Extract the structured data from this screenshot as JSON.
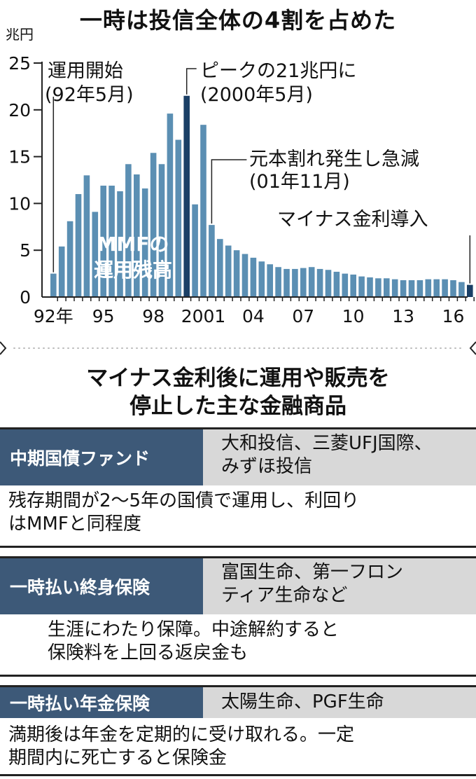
{
  "title": "一時は投信全体の4割を占めた",
  "chart_data": {
    "type": "bar",
    "unit_label": "兆円",
    "series_label": [
      "MMFの",
      "運用残高"
    ],
    "ylim": [
      0,
      25
    ],
    "yticks": [
      0,
      5,
      10,
      15,
      20,
      25
    ],
    "x_tick_labels": [
      "92年",
      "95",
      "98",
      "2001",
      "04",
      "07",
      "10",
      "13",
      "16"
    ],
    "values": [
      2.5,
      5.4,
      8.1,
      11,
      13,
      9.1,
      11.9,
      11.9,
      11.3,
      14.2,
      13.1,
      11.6,
      15.4,
      14.2,
      19.6,
      16.8,
      21.5,
      9.9,
      18.4,
      7.7,
      6.2,
      5.5,
      5.0,
      4.6,
      4.2,
      3.8,
      3.5,
      3.2,
      3.0,
      3.0,
      3.1,
      3.2,
      3.0,
      2.9,
      2.7,
      2.5,
      2.4,
      2.2,
      2.1,
      2.0,
      2.0,
      1.9,
      1.8,
      1.8,
      1.8,
      1.9,
      1.9,
      1.9,
      1.8,
      1.6,
      1.3
    ],
    "highlight_bars": [
      16,
      50
    ],
    "colors": {
      "bar": "#5b8fb3",
      "highlight": "#1a3f66",
      "text": "#111111"
    },
    "annotations": [
      {
        "text": [
          "運用開始",
          "(92年5月)"
        ]
      },
      {
        "text": [
          "ピークの21兆円に",
          "(2000年5月)"
        ]
      },
      {
        "text": [
          "元本割れ発生し急減",
          "(01年11月)"
        ]
      },
      {
        "text": [
          "マイナス金利導入"
        ]
      }
    ]
  },
  "section": {
    "title_lines": [
      "マイナス金利後に運用や販売を",
      "停止した主な金融商品"
    ]
  },
  "products": [
    {
      "name": "中期国債ファンド",
      "companies": [
        "大和投信、三菱UFJ国際、",
        "みずほ投信"
      ],
      "description": [
        "残存期間が2〜5年の国債で運用し、利回り",
        "はMMFと同程度"
      ]
    },
    {
      "name": "一時払い終身保険",
      "companies": [
        "富国生命、第一フロン",
        "ティア生命など"
      ],
      "description": [
        "生涯にわたり保障。中途解約すると",
        "保険料を上回る返戻金も"
      ]
    },
    {
      "name": "一時払い年金保険",
      "companies": [
        "太陽生命、PGF生命"
      ],
      "description": [
        "満期後は年金を定期的に受け取れる。一定",
        "期間内に死亡すると保険金"
      ]
    }
  ]
}
